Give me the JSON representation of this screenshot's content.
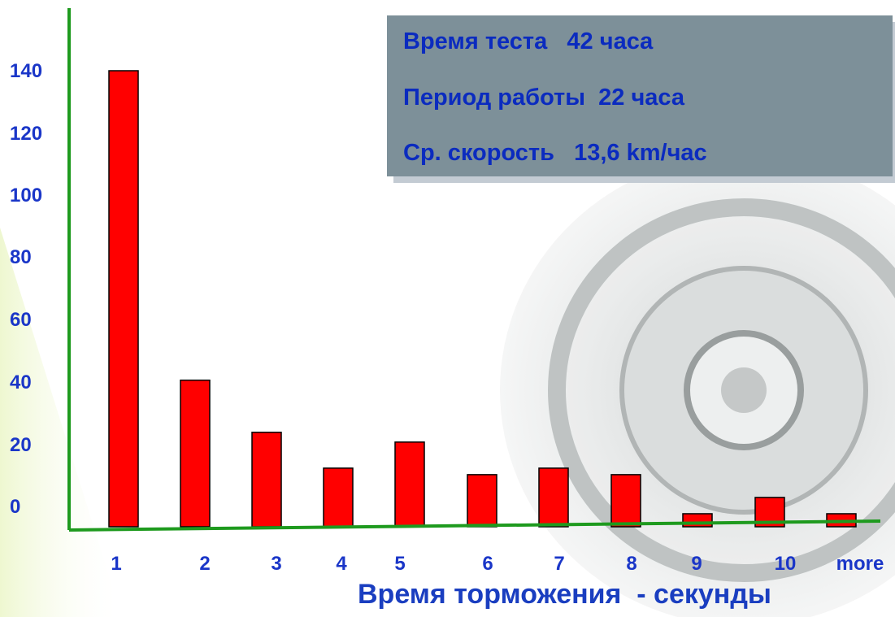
{
  "colors": {
    "bar": "#ff0000",
    "axis": "#1e9a1e",
    "tick_text": "#1a36c8",
    "info_panel": "#7d9099",
    "info_text": "#0b2bbf"
  },
  "info_box": {
    "lines": [
      "Время теста   42 часа",
      "Период работы  22 часа",
      "Ср. скорость   13,6 km/час"
    ]
  },
  "chart_data": {
    "type": "bar",
    "title": "",
    "xlabel": "Время торможения  - секунды",
    "ylabel": "",
    "categories": [
      "1",
      "2",
      "3",
      "4",
      "5",
      "6",
      "7",
      "8",
      "9",
      "10",
      "more"
    ],
    "values": [
      140,
      45,
      29,
      18,
      26,
      16,
      18,
      16,
      4,
      9,
      4
    ],
    "y_ticks": [
      "0",
      "20",
      "40",
      "60",
      "80",
      "100",
      "120",
      "140"
    ],
    "ylim": [
      0,
      140
    ],
    "grid": false,
    "legend": "none"
  }
}
